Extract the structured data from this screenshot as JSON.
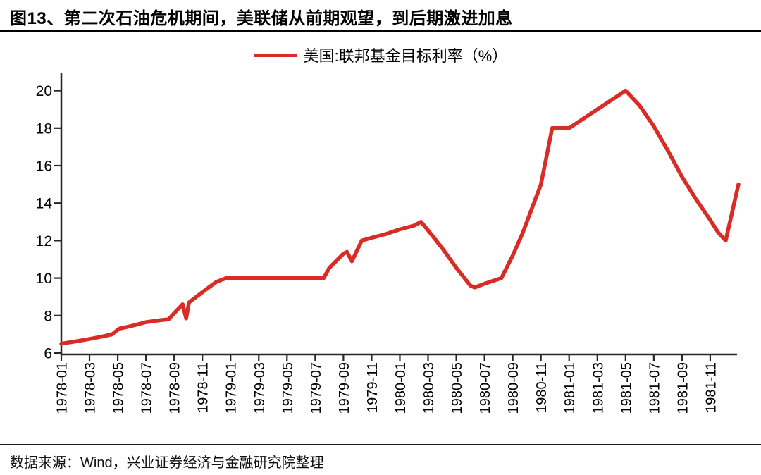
{
  "header": {
    "title": "图13、第二次石油危机期间，美联储从前期观望，到后期激进加息"
  },
  "legend": {
    "label": "美国:联邦基金目标利率（%）"
  },
  "footer": {
    "source": "数据来源：Wind，兴业证券经济与金融研究院整理"
  },
  "colors": {
    "line": "#da2c26",
    "axis": "#262626",
    "text": "#000000"
  },
  "chart_data": {
    "type": "line",
    "title": "图13、第二次石油危机期间，美联储从前期观望，到后期激进加息",
    "legend": [
      "美国:联邦基金目标利率（%）"
    ],
    "legend_position": "top-center",
    "grid": false,
    "xlabel": "",
    "ylabel": "",
    "ylim": [
      6,
      20
    ],
    "yticks": [
      20,
      18,
      16,
      14,
      12,
      10,
      8,
      6
    ],
    "x_tick_labels": [
      "1978-01",
      "1978-03",
      "1978-05",
      "1978-07",
      "1978-09",
      "1978-11",
      "1979-01",
      "1979-03",
      "1979-05",
      "1979-07",
      "1979-09",
      "1979-11",
      "1980-01",
      "1980-03",
      "1980-05",
      "1980-07",
      "1980-09",
      "1980-11",
      "1981-01",
      "1981-03",
      "1981-05",
      "1981-07",
      "1981-09",
      "1981-11"
    ],
    "x_unit": "months since 1978-01 (fractional positions allowed), data runs 1978-01 to 1982-01",
    "source": "数据来源：Wind，兴业证券经济与金融研究院整理",
    "series": [
      {
        "name": "美国:联邦基金目标利率（%）",
        "color": "#da2c26",
        "points": [
          [
            0,
            6.5
          ],
          [
            1,
            6.62
          ],
          [
            2,
            6.75
          ],
          [
            3,
            6.9
          ],
          [
            3.6,
            7.0
          ],
          [
            4.1,
            7.3
          ],
          [
            5,
            7.45
          ],
          [
            5.5,
            7.55
          ],
          [
            6,
            7.65
          ],
          [
            7,
            7.75
          ],
          [
            7.6,
            7.8
          ],
          [
            7.9,
            8.05
          ],
          [
            8.6,
            8.6
          ],
          [
            8.85,
            7.85
          ],
          [
            9.05,
            8.7
          ],
          [
            10,
            9.25
          ],
          [
            11,
            9.8
          ],
          [
            11.7,
            10.0
          ],
          [
            18.6,
            10.0
          ],
          [
            19,
            10.55
          ],
          [
            20,
            11.3
          ],
          [
            20.25,
            11.4
          ],
          [
            20.6,
            10.9
          ],
          [
            21.3,
            12.0
          ],
          [
            22,
            12.15
          ],
          [
            23,
            12.35
          ],
          [
            24,
            12.6
          ],
          [
            25,
            12.8
          ],
          [
            25.5,
            13.0
          ],
          [
            26,
            12.55
          ],
          [
            27,
            11.6
          ],
          [
            28,
            10.55
          ],
          [
            29,
            9.6
          ],
          [
            29.3,
            9.5
          ],
          [
            30,
            9.7
          ],
          [
            31.2,
            10.0
          ],
          [
            32,
            11.2
          ],
          [
            32.7,
            12.4
          ],
          [
            34,
            15.0
          ],
          [
            34.8,
            18.0
          ],
          [
            36,
            18.0
          ],
          [
            37,
            18.5
          ],
          [
            38,
            19.0
          ],
          [
            39,
            19.5
          ],
          [
            40,
            20.0
          ],
          [
            41,
            19.2
          ],
          [
            42,
            18.1
          ],
          [
            43,
            16.8
          ],
          [
            44,
            15.4
          ],
          [
            45,
            14.2
          ],
          [
            46,
            13.1
          ],
          [
            46.6,
            12.4
          ],
          [
            47.1,
            12.0
          ],
          [
            48,
            15.0
          ]
        ]
      }
    ]
  }
}
